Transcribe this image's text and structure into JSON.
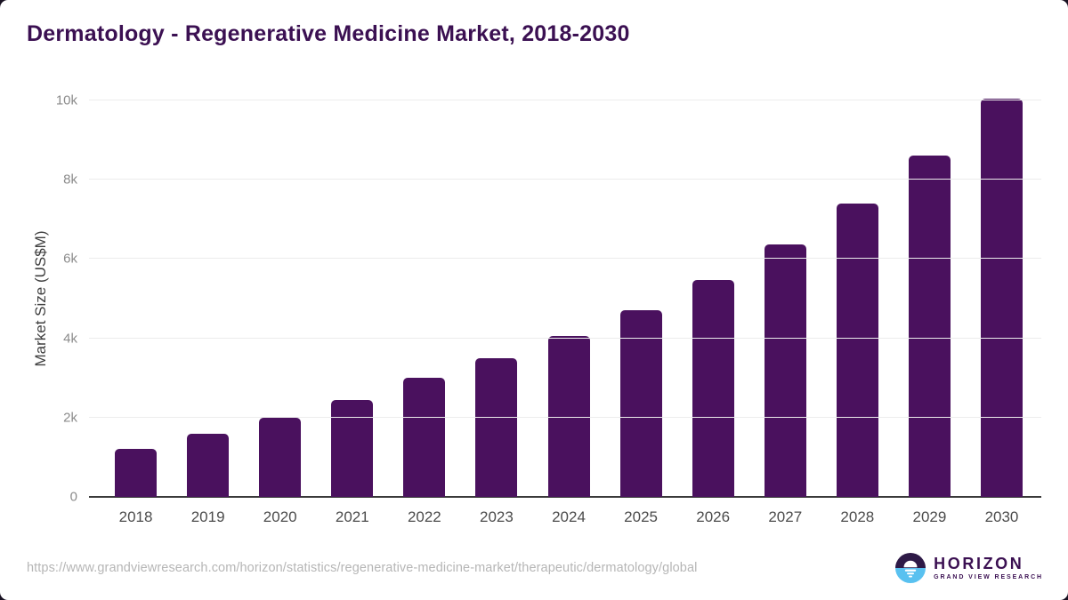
{
  "chart_data": {
    "type": "bar",
    "title": "Dermatology - Regenerative Medicine Market, 2018-2030",
    "xlabel": "",
    "ylabel": "Market Size (US$M)",
    "categories": [
      "2018",
      "2019",
      "2020",
      "2021",
      "2022",
      "2023",
      "2024",
      "2025",
      "2026",
      "2027",
      "2028",
      "2029",
      "2030"
    ],
    "values": [
      1200,
      1600,
      2000,
      2450,
      3000,
      3500,
      4050,
      4700,
      5460,
      6370,
      7390,
      8610,
      10050
    ],
    "ylim": [
      0,
      10000
    ],
    "yticks": [
      {
        "value": 0,
        "label": "0"
      },
      {
        "value": 2000,
        "label": "2k"
      },
      {
        "value": 4000,
        "label": "4k"
      },
      {
        "value": 6000,
        "label": "6k"
      },
      {
        "value": 8000,
        "label": "8k"
      },
      {
        "value": 10000,
        "label": "10k"
      }
    ],
    "grid": "horizontal",
    "legend": "none",
    "bar_color": "#4a115e"
  },
  "brand": {
    "title_color": "#3b1052",
    "bar_color": "#4a115e",
    "logo_dark_purple": "#2e1a47",
    "logo_sky_blue": "#59c1f0"
  },
  "footer": {
    "source_url": "https://www.grandviewresearch.com/horizon/statistics/regenerative-medicine-market/therapeutic/dermatology/global",
    "logo": {
      "name": "HORIZON",
      "tagline": "GRAND VIEW RESEARCH"
    }
  }
}
